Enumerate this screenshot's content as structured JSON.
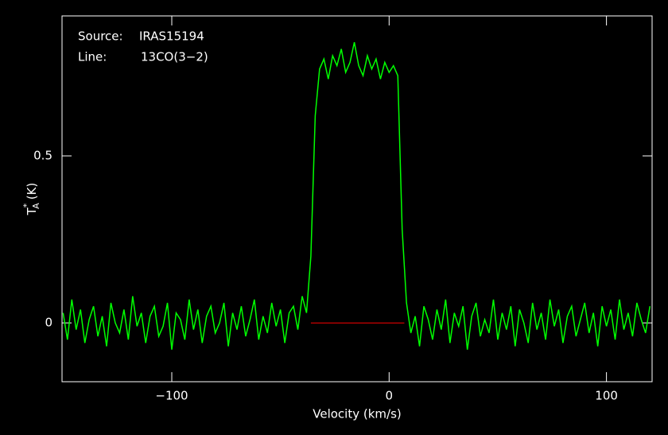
{
  "chart_data": {
    "type": "line",
    "annotations": {
      "source_label": "Source:",
      "source": "IRAS15194",
      "line_label": "Line:",
      "line": "13CO(3−2)"
    },
    "xlabel": "Velocity (km/s)",
    "ylabel": {
      "main": "T",
      "sup": "*",
      "sub": "A",
      "unit": "(K)"
    },
    "xlim": [
      -150.5,
      121
    ],
    "ylim": [
      -0.176,
      0.919
    ],
    "xticks": [
      {
        "value": -100,
        "label": "−100"
      },
      0,
      100
    ],
    "yticks": [
      0,
      0.5
    ],
    "baseline": {
      "x": [
        -36,
        7
      ],
      "y": 0,
      "color": "#ff0000"
    },
    "x": [
      -150,
      -148,
      -146,
      -144,
      -142,
      -140,
      -138,
      -136,
      -134,
      -132,
      -130,
      -128,
      -126,
      -124,
      -122,
      -120,
      -118,
      -116,
      -114,
      -112,
      -110,
      -108,
      -106,
      -104,
      -102,
      -100,
      -98,
      -96,
      -94,
      -92,
      -90,
      -88,
      -86,
      -84,
      -82,
      -80,
      -78,
      -76,
      -74,
      -72,
      -70,
      -68,
      -66,
      -64,
      -62,
      -60,
      -58,
      -56,
      -54,
      -52,
      -50,
      -48,
      -46,
      -44,
      -42,
      -40,
      -38,
      -36,
      -34,
      -32,
      -30,
      -28,
      -26,
      -24,
      -22,
      -20,
      -18,
      -16,
      -14,
      -12,
      -10,
      -8,
      -6,
      -4,
      -2,
      0,
      2,
      4,
      6,
      8,
      10,
      12,
      14,
      16,
      18,
      20,
      22,
      24,
      26,
      28,
      30,
      32,
      34,
      36,
      38,
      40,
      42,
      44,
      46,
      48,
      50,
      52,
      54,
      56,
      58,
      60,
      62,
      64,
      66,
      68,
      70,
      72,
      74,
      76,
      78,
      80,
      82,
      84,
      86,
      88,
      90,
      92,
      94,
      96,
      98,
      100,
      102,
      104,
      106,
      108,
      110,
      112,
      114,
      116,
      118,
      120
    ],
    "series": [
      {
        "color": "#00ff00",
        "values": [
          0.03,
          -0.05,
          0.07,
          -0.02,
          0.04,
          -0.06,
          0.01,
          0.05,
          -0.04,
          0.02,
          -0.07,
          0.06,
          0.0,
          -0.03,
          0.04,
          -0.05,
          0.08,
          -0.01,
          0.03,
          -0.06,
          0.02,
          0.05,
          -0.04,
          -0.01,
          0.06,
          -0.08,
          0.03,
          0.01,
          -0.05,
          0.07,
          -0.02,
          0.04,
          -0.06,
          0.02,
          0.05,
          -0.03,
          0.0,
          0.06,
          -0.07,
          0.03,
          -0.02,
          0.05,
          -0.04,
          0.01,
          0.07,
          -0.05,
          0.02,
          -0.03,
          0.06,
          -0.01,
          0.04,
          -0.06,
          0.03,
          0.05,
          -0.02,
          0.08,
          0.03,
          0.2,
          0.62,
          0.76,
          0.79,
          0.73,
          0.8,
          0.77,
          0.82,
          0.75,
          0.78,
          0.84,
          0.77,
          0.74,
          0.8,
          0.76,
          0.79,
          0.73,
          0.78,
          0.75,
          0.77,
          0.74,
          0.28,
          0.06,
          -0.03,
          0.02,
          -0.07,
          0.05,
          0.01,
          -0.05,
          0.04,
          -0.02,
          0.07,
          -0.06,
          0.03,
          -0.01,
          0.05,
          -0.08,
          0.02,
          0.06,
          -0.04,
          0.01,
          -0.03,
          0.07,
          -0.05,
          0.03,
          -0.02,
          0.05,
          -0.07,
          0.04,
          0.0,
          -0.06,
          0.06,
          -0.02,
          0.03,
          -0.05,
          0.07,
          -0.01,
          0.04,
          -0.06,
          0.02,
          0.05,
          -0.04,
          0.01,
          0.06,
          -0.03,
          0.03,
          -0.07,
          0.05,
          -0.01,
          0.04,
          -0.05,
          0.07,
          -0.02,
          0.03,
          -0.04,
          0.06,
          0.01,
          -0.03,
          0.05
        ]
      }
    ]
  }
}
